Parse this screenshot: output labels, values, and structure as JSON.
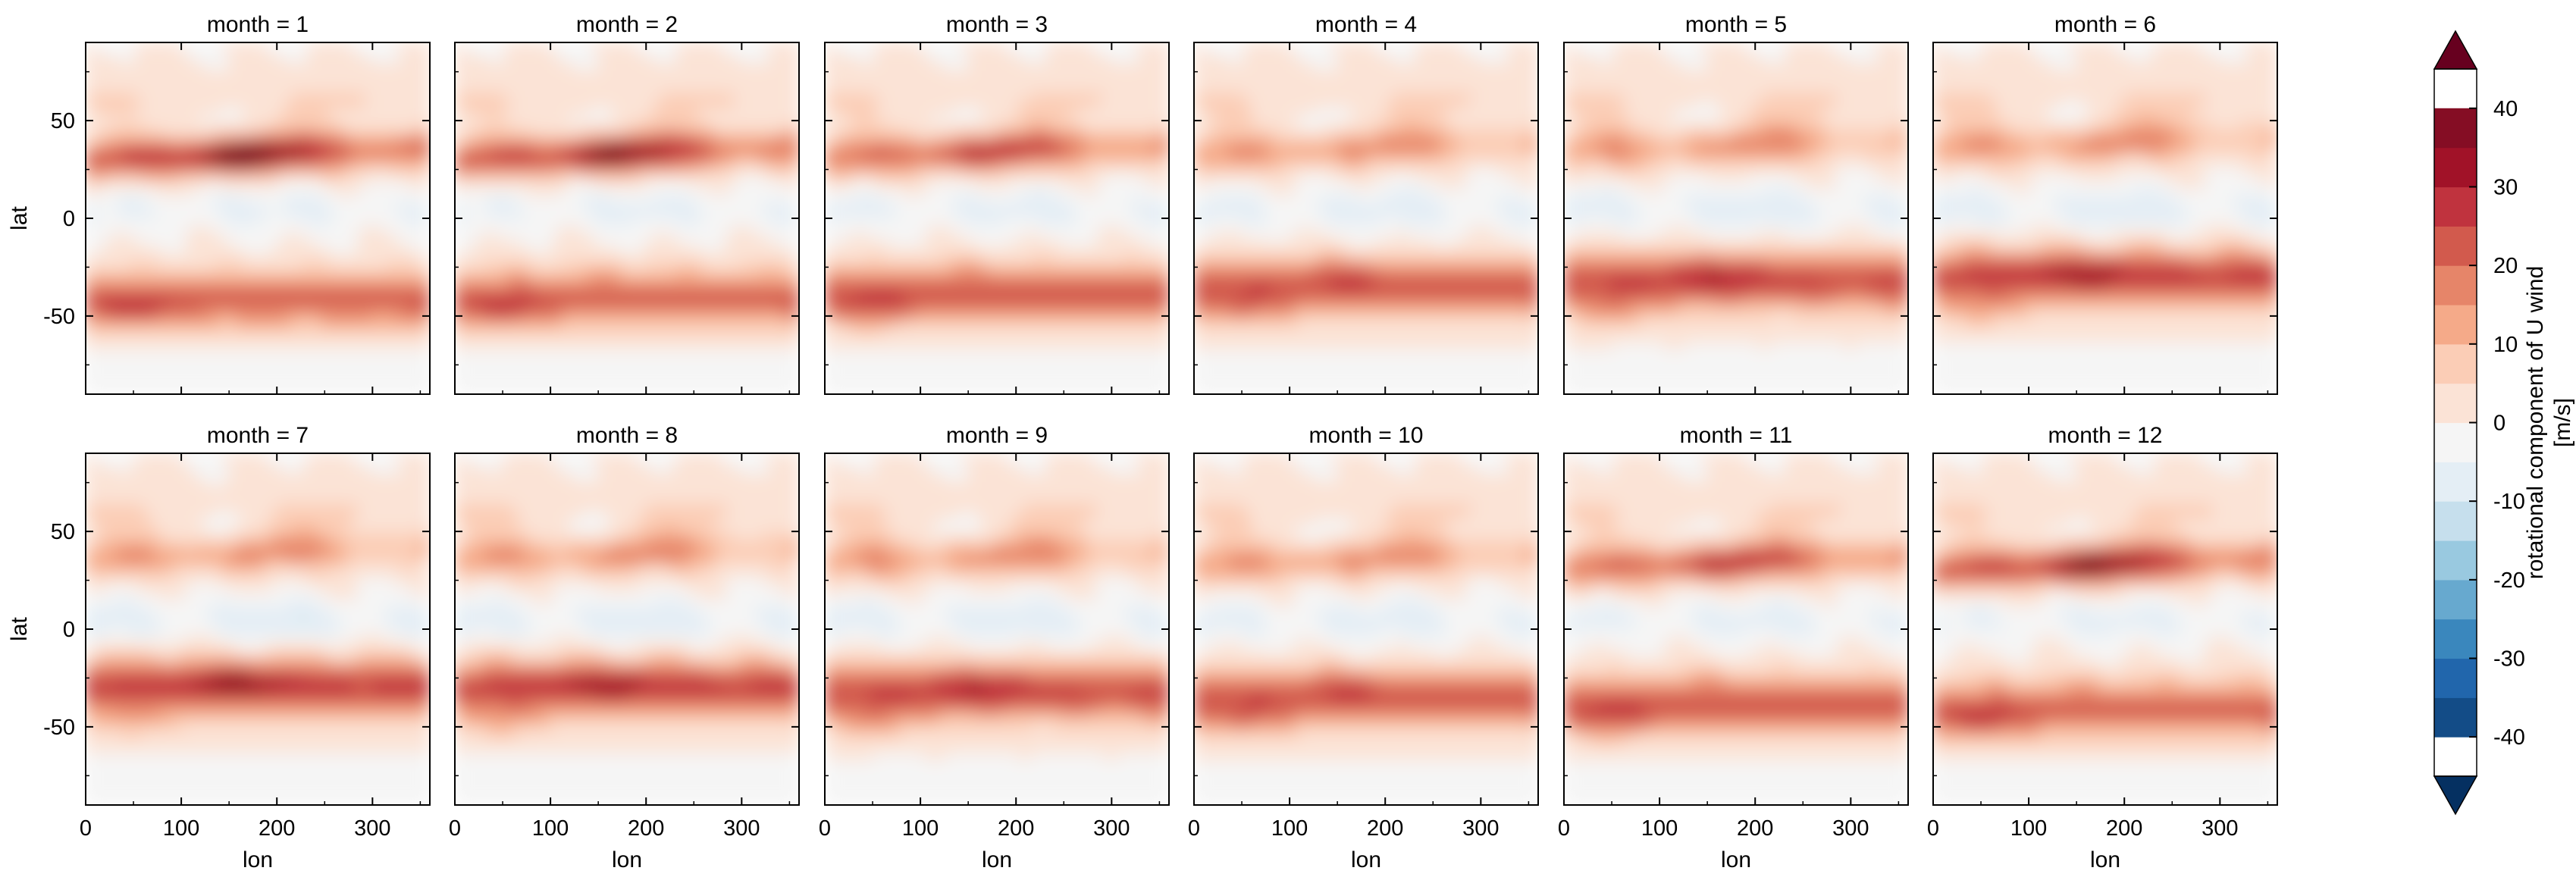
{
  "chart_data": {
    "type": "heatmap",
    "variable_label": "rotational component of U wind",
    "units_label": "[m/s]",
    "xlabel": "lon",
    "ylabel": "lat",
    "xlim": [
      0,
      360
    ],
    "ylim": [
      -90,
      90
    ],
    "x_ticks": [
      0,
      100,
      200,
      300
    ],
    "y_ticks": [
      50,
      0,
      -50
    ],
    "panels": [
      {
        "title": "month = 1",
        "month": 1
      },
      {
        "title": "month = 2",
        "month": 2
      },
      {
        "title": "month = 3",
        "month": 3
      },
      {
        "title": "month = 4",
        "month": 4
      },
      {
        "title": "month = 5",
        "month": 5
      },
      {
        "title": "month = 6",
        "month": 6
      },
      {
        "title": "month = 7",
        "month": 7
      },
      {
        "title": "month = 8",
        "month": 8
      },
      {
        "title": "month = 9",
        "month": 9
      },
      {
        "title": "month = 10",
        "month": 10
      },
      {
        "title": "month = 11",
        "month": 11
      },
      {
        "title": "month = 12",
        "month": 12
      }
    ],
    "colorbar": {
      "levels": [
        -45,
        -40,
        -35,
        -30,
        -25,
        -20,
        -15,
        -10,
        -5,
        0,
        5,
        10,
        15,
        20,
        25,
        30,
        35,
        40,
        45
      ],
      "tick_values": [
        40,
        30,
        20,
        10,
        0,
        -10,
        -20,
        -30,
        -40
      ],
      "extend": "both",
      "colors": [
        "#053061",
        "#134c87",
        "#2166ac",
        "#3a87bd",
        "#67a9cf",
        "#99c9e0",
        "#c6dfed",
        "#e4eef5",
        "#f5f5f5",
        "#fbe3d6",
        "#fbcdb6",
        "#f5aa89",
        "#e68569",
        "#d25a4d",
        "#c0333e",
        "#a11228",
        "#850d24",
        "#67001f"
      ]
    }
  }
}
